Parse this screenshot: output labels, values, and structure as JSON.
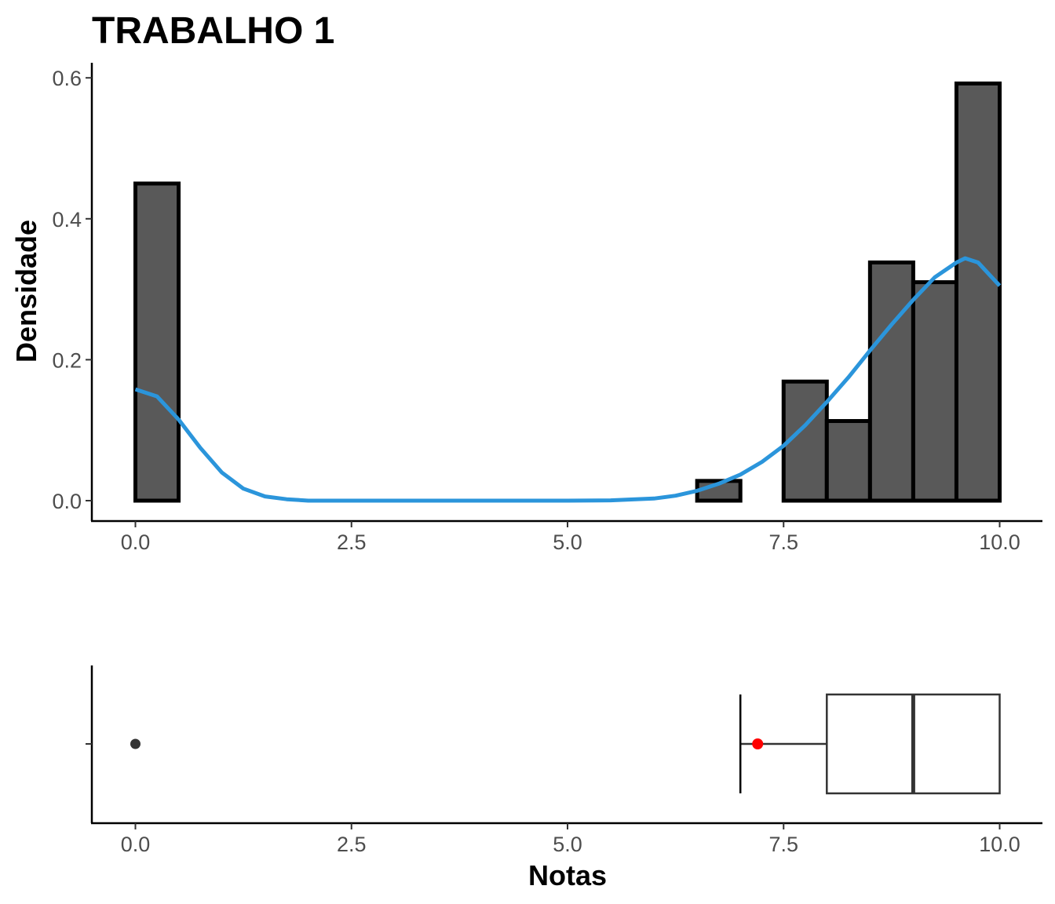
{
  "chart_data": [
    {
      "type": "bar",
      "subtype": "histogram-with-density",
      "title": "TRABALHO 1",
      "xlabel": "",
      "ylabel": "Densidade",
      "xlim": [
        -0.5,
        10.5
      ],
      "ylim": [
        -0.03,
        0.62
      ],
      "xticks": [
        0,
        2.5,
        5,
        7.5,
        10
      ],
      "xtick_labels": [
        "0.0",
        "2.5",
        "5.0",
        "7.5",
        "10.0"
      ],
      "yticks": [
        0,
        0.2,
        0.4,
        0.6
      ],
      "ytick_labels": [
        "0.0",
        "0.2",
        "0.4",
        "0.6"
      ],
      "bin_width": 0.5,
      "bins": [
        {
          "start": 0.0,
          "end": 0.5,
          "density": 0.45
        },
        {
          "start": 0.5,
          "end": 1.0,
          "density": 0.0
        },
        {
          "start": 1.0,
          "end": 1.5,
          "density": 0.0
        },
        {
          "start": 1.5,
          "end": 2.0,
          "density": 0.0
        },
        {
          "start": 2.0,
          "end": 2.5,
          "density": 0.0
        },
        {
          "start": 2.5,
          "end": 3.0,
          "density": 0.0
        },
        {
          "start": 3.0,
          "end": 3.5,
          "density": 0.0
        },
        {
          "start": 3.5,
          "end": 4.0,
          "density": 0.0
        },
        {
          "start": 4.0,
          "end": 4.5,
          "density": 0.0
        },
        {
          "start": 4.5,
          "end": 5.0,
          "density": 0.0
        },
        {
          "start": 5.0,
          "end": 5.5,
          "density": 0.0
        },
        {
          "start": 5.5,
          "end": 6.0,
          "density": 0.0
        },
        {
          "start": 6.0,
          "end": 6.5,
          "density": 0.0
        },
        {
          "start": 6.5,
          "end": 7.0,
          "density": 0.028
        },
        {
          "start": 7.0,
          "end": 7.5,
          "density": 0.0
        },
        {
          "start": 7.5,
          "end": 8.0,
          "density": 0.169
        },
        {
          "start": 8.0,
          "end": 8.5,
          "density": 0.113
        },
        {
          "start": 8.5,
          "end": 9.0,
          "density": 0.338
        },
        {
          "start": 9.0,
          "end": 9.5,
          "density": 0.31
        },
        {
          "start": 9.5,
          "end": 10.0,
          "density": 0.592
        }
      ],
      "density_curve": {
        "x": [
          0,
          0.25,
          0.5,
          0.75,
          1.0,
          1.25,
          1.5,
          1.75,
          2.0,
          3.0,
          4.0,
          5.0,
          5.5,
          6.0,
          6.25,
          6.5,
          6.75,
          7.0,
          7.25,
          7.5,
          7.75,
          8.0,
          8.25,
          8.5,
          8.75,
          9.0,
          9.25,
          9.5,
          9.6,
          9.75,
          10.0
        ],
        "y": [
          0.158,
          0.148,
          0.115,
          0.075,
          0.04,
          0.017,
          0.006,
          0.002,
          0.0,
          0.0,
          0.0,
          0.0,
          0.0005,
          0.003,
          0.007,
          0.014,
          0.024,
          0.037,
          0.055,
          0.078,
          0.107,
          0.14,
          0.175,
          0.213,
          0.25,
          0.285,
          0.317,
          0.338,
          0.344,
          0.338,
          0.305
        ]
      },
      "colors": {
        "bar_fill": "#595959",
        "bar_outline": "#000000",
        "curve": "#2b95db"
      }
    },
    {
      "type": "boxplot",
      "xlabel": "Notas",
      "ylabel": "",
      "xlim": [
        -0.5,
        10.5
      ],
      "xticks": [
        0,
        2.5,
        5,
        7.5,
        10
      ],
      "xtick_labels": [
        "0.0",
        "2.5",
        "5.0",
        "7.5",
        "10.0"
      ],
      "box": {
        "whisker_low": 7.0,
        "q1": 8.0,
        "median": 9.0,
        "q3": 10.0,
        "whisker_high": 10.0
      },
      "outliers": [
        0.0
      ],
      "mean": 7.2,
      "colors": {
        "box_outline": "#333333",
        "outlier": "#333333",
        "mean_point": "#ff0000"
      }
    }
  ]
}
